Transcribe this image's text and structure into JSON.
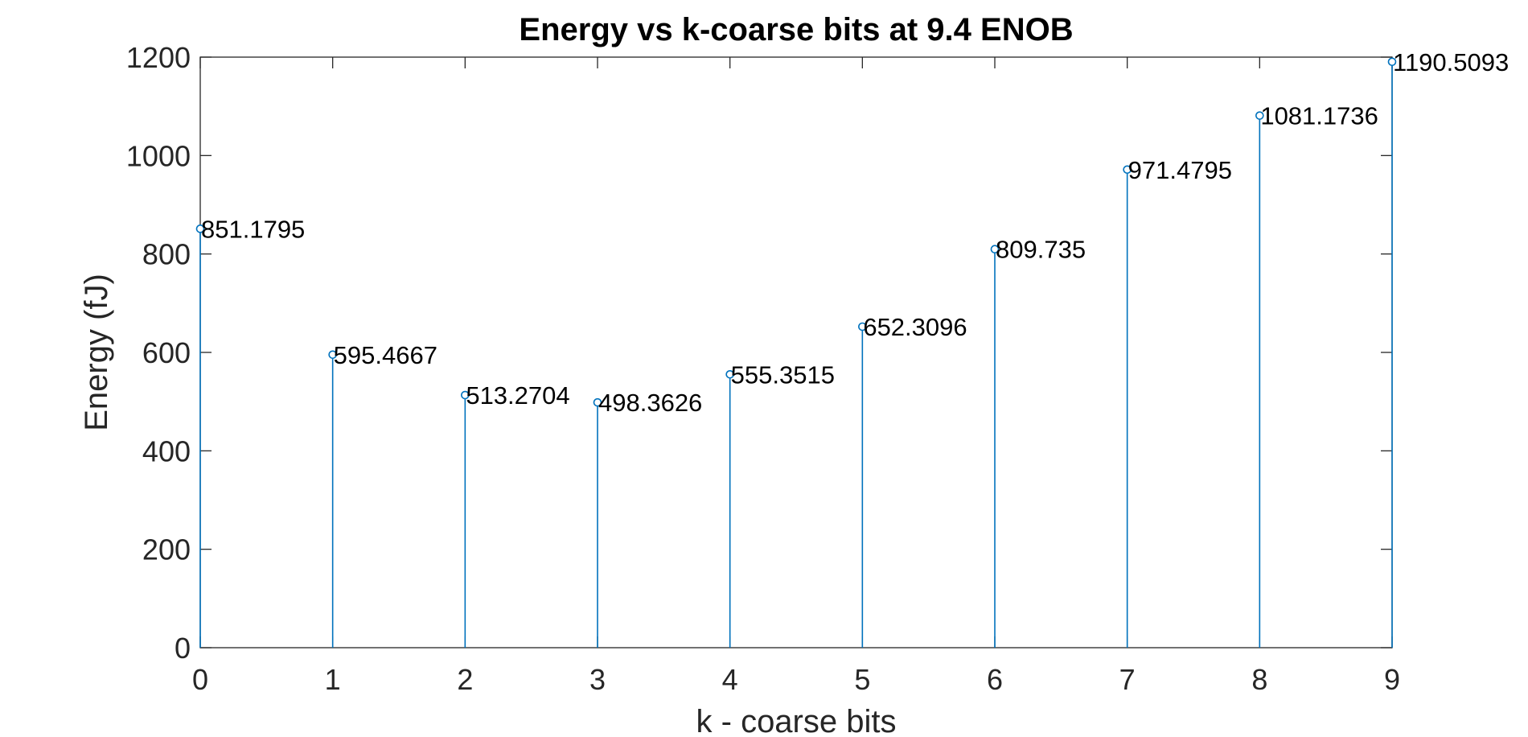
{
  "chart_data": {
    "type": "stem",
    "title": "Energy vs k-coarse bits at 9.4 ENOB",
    "xlabel": "k - coarse bits",
    "ylabel": "Energy (fJ)",
    "x": [
      0,
      1,
      2,
      3,
      4,
      5,
      6,
      7,
      8,
      9
    ],
    "values": [
      851.1795,
      595.4667,
      513.2704,
      498.3626,
      555.3515,
      652.3096,
      809.735,
      971.4795,
      1081.1736,
      1190.5093
    ],
    "data_labels": [
      "851.1795",
      "595.4667",
      "513.2704",
      "498.3626",
      "555.3515",
      "652.3096",
      "809.735",
      "971.4795",
      "1081.1736",
      "1190.5093"
    ],
    "xlim": [
      0,
      9
    ],
    "ylim": [
      0,
      1200
    ],
    "xticks": [
      0,
      1,
      2,
      3,
      4,
      5,
      6,
      7,
      8,
      9
    ],
    "yticks": [
      0,
      200,
      400,
      600,
      800,
      1000,
      1200
    ],
    "grid": false,
    "series_color": "#0072BD"
  }
}
